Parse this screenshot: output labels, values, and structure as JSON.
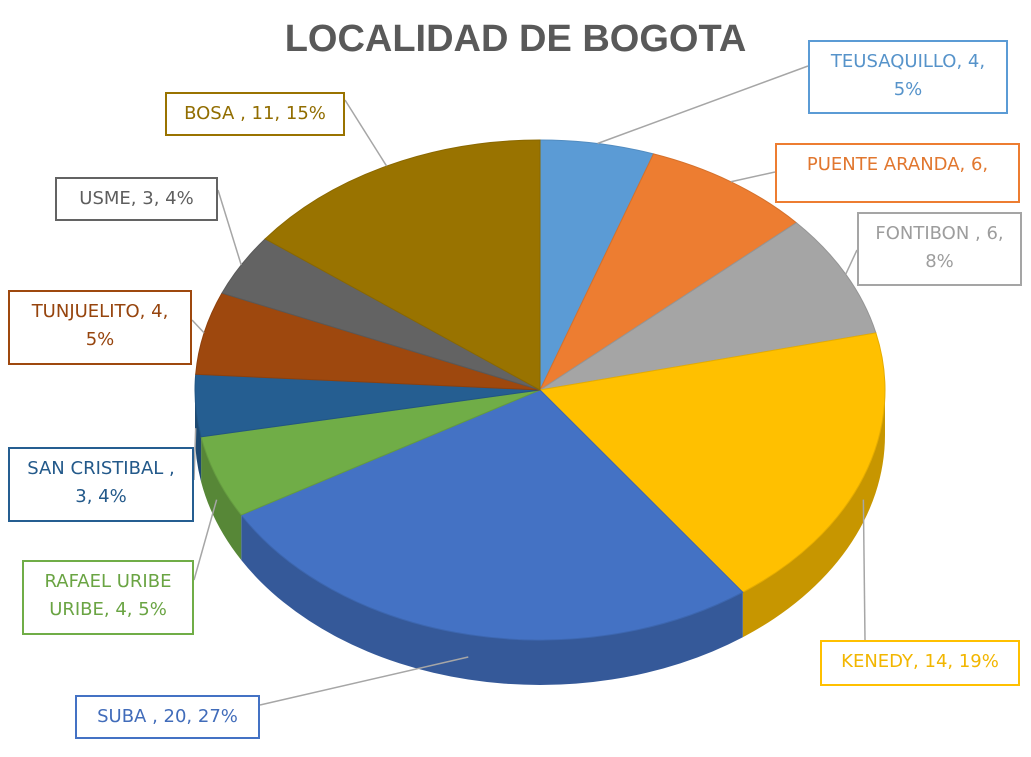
{
  "chart_data": {
    "type": "pie3d",
    "title": "LOCALIDAD DE BOGOTA",
    "labels": [
      "TEUSAQUILLO, 4, 5%",
      "PUENTE ARANDA, 6,",
      "FONTIBON , 6, 8%",
      "KENEDY, 14, 19%",
      "SUBA , 20, 27%",
      "RAFAEL URIBE URIBE, 4, 5%",
      "SAN CRISTIBAL , 3, 4%",
      "TUNJUELITO, 4, 5%",
      "USME, 3, 4%",
      "BOSA , 11, 15%"
    ],
    "values": [
      4,
      6,
      6,
      14,
      20,
      4,
      3,
      4,
      3,
      11
    ],
    "colors": [
      "#5b9bd5",
      "#ed7d31",
      "#a5a5a5",
      "#ffc000",
      "#4472c4",
      "#70ad47",
      "#255e91",
      "#9e480e",
      "#636363",
      "#997300"
    ]
  }
}
